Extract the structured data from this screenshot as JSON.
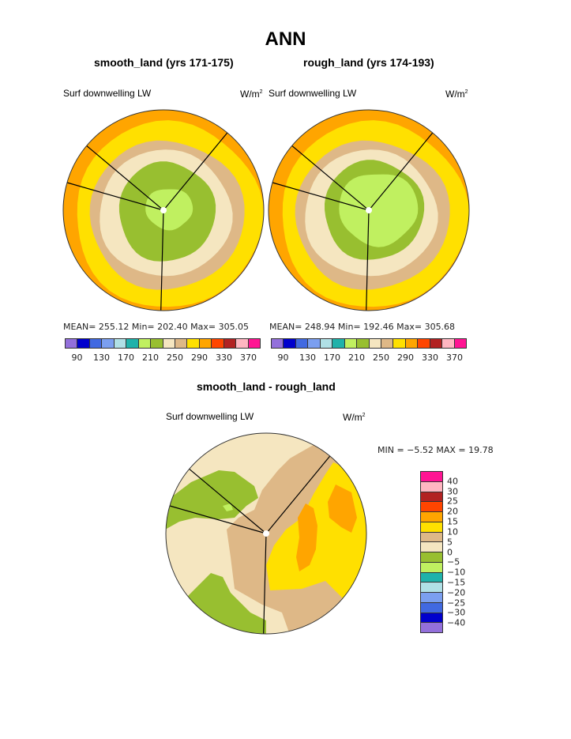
{
  "title": "ANN",
  "panels": [
    {
      "subtitle": "smooth_land (yrs 171-175)",
      "variable": "Surf downwelling LW",
      "units_base": "W/m",
      "units_sup": "2",
      "stats": "MEAN= 255.12   Min= 202.40   Max= 305.05"
    },
    {
      "subtitle": "rough_land (yrs 174-193)",
      "variable": "Surf downwelling LW",
      "units_base": "W/m",
      "units_sup": "2",
      "stats": "MEAN= 248.94   Min= 192.46   Max= 305.68"
    },
    {
      "subtitle": "smooth_land - rough_land",
      "variable": "Surf downwelling LW",
      "units_base": "W/m",
      "units_sup": "2",
      "stats": "MIN =   −5.52  MAX =   19.78"
    }
  ],
  "colorbar_abs": {
    "colors": [
      "#9370db",
      "#0000cd",
      "#4169e1",
      "#7b9ff0",
      "#b0e0e6",
      "#20b2aa",
      "#c0f060",
      "#98bf30",
      "#f5e6c0",
      "#deb887",
      "#ffe000",
      "#ffa500",
      "#ff4500",
      "#b22222",
      "#ffb6c1",
      "#ff1493"
    ],
    "tick_labels": [
      "90",
      "130",
      "170",
      "210",
      "250",
      "290",
      "330",
      "370"
    ]
  },
  "colorbar_diff": {
    "colors": [
      "#ff1493",
      "#ffb6c1",
      "#b22222",
      "#ff4500",
      "#ffa500",
      "#ffe000",
      "#deb887",
      "#f5e6c0",
      "#98bf30",
      "#c0f060",
      "#20b2aa",
      "#b0e0e6",
      "#7b9ff0",
      "#4169e1",
      "#0000cd",
      "#9370db"
    ],
    "tick_labels": [
      "40",
      "30",
      "25",
      "20",
      "15",
      "10",
      "5",
      "0",
      "−5",
      "−10",
      "−15",
      "−20",
      "−25",
      "−30",
      "−40"
    ]
  },
  "chart_data": [
    {
      "type": "heatmap",
      "projection": "polar",
      "title": "smooth_land (yrs 171-175)",
      "variable": "Surf downwelling LW",
      "units": "W/m2",
      "mean": 255.12,
      "min": 202.4,
      "max": 305.05,
      "contour_levels": [
        90,
        110,
        130,
        150,
        170,
        190,
        210,
        230,
        250,
        270,
        290,
        310,
        330,
        350,
        370
      ],
      "bands_outer_to_inner": [
        ">290",
        "270-290",
        "250-270",
        "230-250",
        "210-230",
        "190-210"
      ]
    },
    {
      "type": "heatmap",
      "projection": "polar",
      "title": "rough_land (yrs 174-193)",
      "variable": "Surf downwelling LW",
      "units": "W/m2",
      "mean": 248.94,
      "min": 192.46,
      "max": 305.68,
      "contour_levels": [
        90,
        110,
        130,
        150,
        170,
        190,
        210,
        230,
        250,
        270,
        290,
        310,
        330,
        350,
        370
      ],
      "bands_outer_to_inner": [
        ">290",
        "270-290",
        "250-270",
        "230-250",
        "210-230",
        "190-210"
      ]
    },
    {
      "type": "heatmap",
      "projection": "polar",
      "title": "smooth_land - rough_land",
      "variable": "Surf downwelling LW",
      "units": "W/m2",
      "min": -5.52,
      "max": 19.78,
      "contour_levels": [
        -40,
        -30,
        -25,
        -20,
        -15,
        -10,
        -5,
        0,
        5,
        10,
        15,
        20,
        25,
        30,
        40
      ]
    }
  ]
}
